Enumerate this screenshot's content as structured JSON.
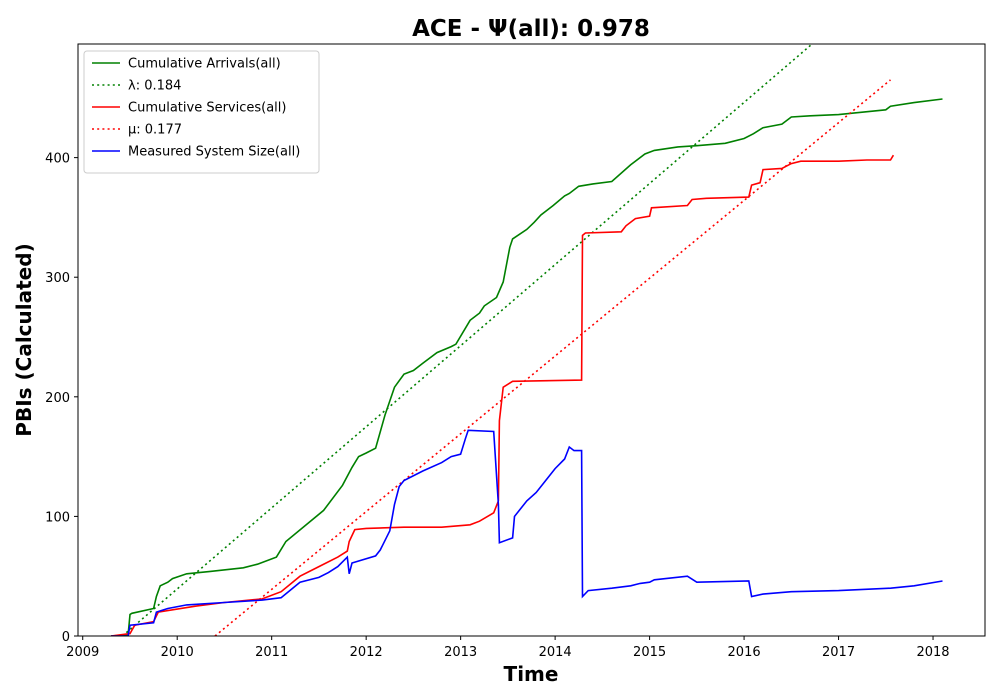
{
  "chart_data": {
    "type": "line",
    "title": "ACE -  Ψ(all): 0.978",
    "xlabel": "Time",
    "ylabel": "PBIs (Calculated)",
    "xlim": [
      2008.95,
      2018.55
    ],
    "ylim": [
      0,
      495
    ],
    "xticks": [
      2009,
      2010,
      2011,
      2012,
      2013,
      2014,
      2015,
      2016,
      2017,
      2018
    ],
    "xtick_labels": [
      "2009",
      "2010",
      "2011",
      "2012",
      "2013",
      "2014",
      "2015",
      "2016",
      "2017",
      "2018"
    ],
    "yticks": [
      0,
      100,
      200,
      300,
      400
    ],
    "ytick_labels": [
      "0",
      "100",
      "200",
      "300",
      "400"
    ],
    "grid": false,
    "legend_position": "top-left",
    "series": [
      {
        "name": "Cumulative Arrivals(all)",
        "color": "#008000",
        "style": "solid",
        "x": [
          2009.3,
          2009.48,
          2009.5,
          2009.52,
          2009.75,
          2009.78,
          2009.82,
          2009.9,
          2009.95,
          2010.1,
          2010.35,
          2010.7,
          2010.85,
          2011.05,
          2011.15,
          2011.35,
          2011.55,
          2011.75,
          2011.85,
          2011.92,
          2012.0,
          2012.1,
          2012.2,
          2012.3,
          2012.4,
          2012.5,
          2012.6,
          2012.75,
          2012.9,
          2012.95,
          2013.1,
          2013.2,
          2013.25,
          2013.38,
          2013.45,
          2013.52,
          2013.55,
          2013.7,
          2013.78,
          2013.85,
          2013.98,
          2014.1,
          2014.15,
          2014.25,
          2014.4,
          2014.6,
          2014.8,
          2014.95,
          2015.05,
          2015.3,
          2015.5,
          2015.8,
          2016.0,
          2016.1,
          2016.2,
          2016.4,
          2016.5,
          2016.7,
          2017.0,
          2017.25,
          2017.5,
          2017.55,
          2017.8,
          2018.1
        ],
        "y": [
          0,
          1,
          18,
          19,
          23,
          33,
          42,
          45,
          48,
          52,
          54,
          57,
          60,
          66,
          79,
          92,
          105,
          126,
          141,
          150,
          153,
          157,
          185,
          208,
          219,
          222,
          228,
          237,
          242,
          244,
          264,
          270,
          276,
          283,
          296,
          325,
          332,
          340,
          346,
          352,
          360,
          368,
          370,
          376,
          378,
          380,
          394,
          403,
          406,
          409,
          410,
          412,
          416,
          420,
          425,
          428,
          434,
          435,
          436,
          438,
          440,
          443,
          446,
          449
        ]
      },
      {
        "name": "λ: 0.184",
        "color": "#008000",
        "style": "dotted",
        "x": [
          2009.42,
          2016.72
        ],
        "y": [
          0,
          495
        ]
      },
      {
        "name": "Cumulative Services(all)",
        "color": "#ff0000",
        "style": "solid",
        "x": [
          2009.3,
          2009.5,
          2009.55,
          2009.75,
          2009.8,
          2010.2,
          2010.5,
          2010.9,
          2011.1,
          2011.3,
          2011.5,
          2011.7,
          2011.8,
          2011.82,
          2011.88,
          2012.0,
          2012.4,
          2012.8,
          2013.1,
          2013.2,
          2013.35,
          2013.4,
          2013.41,
          2013.45,
          2013.55,
          2014.28,
          2014.29,
          2014.32,
          2014.7,
          2014.75,
          2014.85,
          2015.0,
          2015.02,
          2015.4,
          2015.45,
          2015.6,
          2016.05,
          2016.08,
          2016.17,
          2016.2,
          2016.4,
          2016.5,
          2016.6,
          2017.0,
          2017.3,
          2017.55,
          2017.58
        ],
        "y": [
          0,
          2,
          9,
          12,
          20,
          25,
          28,
          31,
          37,
          50,
          58,
          66,
          71,
          79,
          89,
          90,
          91,
          91,
          93,
          96,
          103,
          113,
          180,
          208,
          213,
          214,
          335,
          337,
          338,
          343,
          349,
          351,
          358,
          360,
          365,
          366,
          367,
          377,
          379,
          390,
          391,
          395,
          397,
          397,
          398,
          398,
          402
        ]
      },
      {
        "name": "μ: 0.177",
        "color": "#ff0000",
        "style": "dotted",
        "x": [
          2010.4,
          2017.55
        ],
        "y": [
          0,
          465
        ]
      },
      {
        "name": "Measured System Size(all)",
        "color": "#0000ff",
        "style": "solid",
        "x": [
          2009.3,
          2009.48,
          2009.5,
          2009.75,
          2009.78,
          2009.9,
          2010.1,
          2010.5,
          2010.9,
          2011.1,
          2011.3,
          2011.5,
          2011.6,
          2011.7,
          2011.8,
          2011.82,
          2011.85,
          2012.1,
          2012.15,
          2012.25,
          2012.3,
          2012.35,
          2012.4,
          2012.6,
          2012.8,
          2012.9,
          2013.0,
          2013.05,
          2013.08,
          2013.35,
          2013.4,
          2013.41,
          2013.55,
          2013.57,
          2013.7,
          2013.8,
          2013.9,
          2014.0,
          2014.1,
          2014.15,
          2014.2,
          2014.28,
          2014.29,
          2014.35,
          2014.6,
          2014.8,
          2014.9,
          2015.0,
          2015.05,
          2015.4,
          2015.5,
          2016.05,
          2016.08,
          2016.2,
          2016.5,
          2017.0,
          2017.55,
          2017.8,
          2018.1
        ],
        "y": [
          0,
          0,
          9,
          11,
          20,
          23,
          26,
          28,
          30,
          32,
          45,
          49,
          53,
          58,
          66,
          52,
          61,
          67,
          72,
          88,
          110,
          125,
          130,
          138,
          145,
          150,
          152,
          165,
          172,
          171,
          110,
          78,
          82,
          100,
          113,
          120,
          130,
          140,
          148,
          158,
          155,
          155,
          33,
          38,
          40,
          42,
          44,
          45,
          47,
          50,
          45,
          46,
          33,
          35,
          37,
          38,
          40,
          42,
          46
        ]
      }
    ]
  }
}
